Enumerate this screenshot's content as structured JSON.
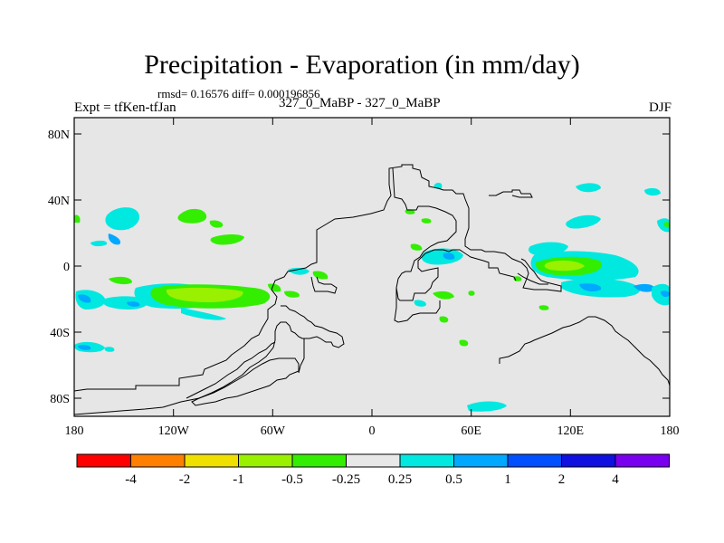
{
  "title": "Precipitation - Evaporation (in mm/day)",
  "stats": "rmsd= 0.16576 diff= 0.000196856",
  "experiment": "Expt = tfKen-tfJan",
  "comparison": "327_0_MaBP - 327_0_MaBP",
  "season": "DJF",
  "lat_ticks": [
    "80N",
    "40N",
    "0",
    "40S",
    "80S"
  ],
  "lon_ticks": [
    "180",
    "120W",
    "60W",
    "0",
    "60E",
    "120E",
    "180"
  ],
  "colorbar": {
    "labels": [
      "-4",
      "-2",
      "-1",
      "-0.5",
      "-0.25",
      "0.25",
      "0.5",
      "1",
      "2",
      "4"
    ],
    "colors": [
      "#ff0000",
      "#ff8000",
      "#f0e000",
      "#99f000",
      "#33ee00",
      "#e8e8e8",
      "#00e8e0",
      "#00a8ff",
      "#0050ff",
      "#1010e0",
      "#7a00f0"
    ]
  },
  "colors": {
    "background_fill": "#e6e6e6",
    "coastline": "#000000"
  }
}
